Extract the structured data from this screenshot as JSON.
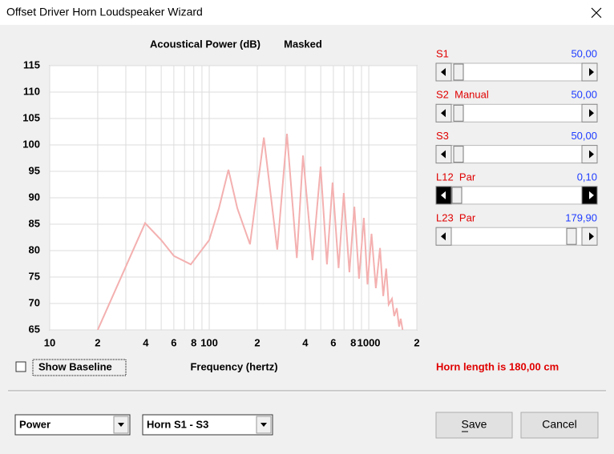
{
  "window": {
    "title": "Offset Driver Horn Loudspeaker Wizard"
  },
  "chart_data": {
    "type": "line",
    "title": "Acoustical Power (dB)",
    "subtitle": "Masked",
    "x_label": "Frequency (hertz)",
    "x": [
      20,
      30,
      39.6,
      50,
      60,
      76.6,
      100,
      115,
      132,
      150,
      180,
      220,
      267,
      307,
      354,
      387,
      444,
      499,
      547,
      593,
      647,
      697,
      756,
      812,
      869,
      931,
      982,
      1040,
      1108,
      1176,
      1232,
      1286,
      1333,
      1397,
      1443,
      1497,
      1549,
      1585,
      1630
    ],
    "values": [
      65,
      77,
      85.2,
      82,
      79,
      77.4,
      82,
      88,
      95.3,
      88,
      81.2,
      101.4,
      80.2,
      102.1,
      78.6,
      98,
      78.2,
      95.9,
      77.4,
      92.9,
      76.7,
      90.9,
      75.9,
      88.3,
      74.7,
      86.2,
      73.6,
      83.2,
      72.9,
      80.5,
      71.4,
      76.6,
      69.8,
      70.9,
      67.6,
      69.1,
      65.6,
      67.1,
      65
    ],
    "color": "#f4b0b0",
    "xlog": true,
    "grid": true,
    "xlim": [
      10,
      2000
    ],
    "ylim": [
      65,
      115
    ],
    "xticks": [
      10,
      {
        "value": 20,
        "label": "2"
      },
      {
        "value": 40,
        "label": "4"
      },
      {
        "value": 60,
        "label": "6"
      },
      {
        "value": 80,
        "label": "8"
      },
      100,
      {
        "value": 200,
        "label": "2"
      },
      {
        "value": 400,
        "label": "4"
      },
      {
        "value": 600,
        "label": "6"
      },
      {
        "value": 800,
        "label": "8"
      },
      1000,
      {
        "value": 2000,
        "label": "2"
      }
    ],
    "xminor": [
      30,
      50,
      70,
      90,
      300,
      500,
      700,
      900
    ],
    "yticks": [
      65,
      70,
      75,
      80,
      85,
      90,
      95,
      100,
      105,
      110,
      115
    ]
  },
  "checkbox": "Show Baseline",
  "status": "Horn length is 180,00 cm",
  "sliders": [
    {
      "label": "S1",
      "value": "50,00"
    },
    {
      "label": "S2  Manual",
      "value": "50,00"
    },
    {
      "label": "S3",
      "value": "50,00"
    },
    {
      "label": "L12  Par",
      "value": "0,10"
    },
    {
      "label": "L23  Par",
      "value": "179,90"
    }
  ],
  "dropdowns": [
    "Power",
    "Horn S1 - S3"
  ],
  "buttons": [
    "Save",
    "Cancel"
  ]
}
